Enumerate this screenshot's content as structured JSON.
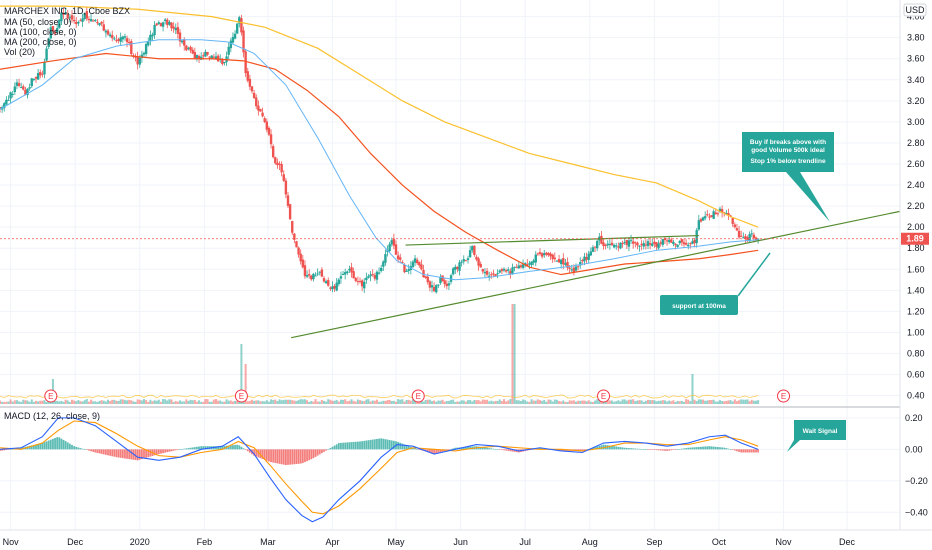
{
  "header": {
    "symbol_line": "MARCHEX INC, 1D, Cboe BZX",
    "currency": "USD"
  },
  "indicators": [
    "MA (50, close, 0)",
    "MA (100, close, 0)",
    "MA (200, close, 0)",
    "Vol (20)"
  ],
  "macd_label": "MACD (12, 26, close, 9)",
  "chart_data": {
    "type": "candlestick",
    "title": "MARCHEX INC, 1D, Cboe BZX",
    "price_axis": {
      "ticks": [
        "4.00",
        "3.80",
        "3.60",
        "3.40",
        "3.20",
        "3.00",
        "2.80",
        "2.60",
        "2.40",
        "2.20",
        "2.00",
        "1.80",
        "1.60",
        "1.40",
        "1.20",
        "1.00",
        "0.80",
        "0.60",
        "0.40"
      ],
      "range": [
        0.32,
        4.12
      ],
      "last_price": "1.89"
    },
    "macd_axis": {
      "ticks": [
        "0.20",
        "0.00",
        "−0.20",
        "−0.40"
      ],
      "range": [
        -0.5,
        0.25
      ]
    },
    "x_axis": {
      "labels": [
        "Nov",
        "Dec",
        "2020",
        "Feb",
        "Mar",
        "Apr",
        "May",
        "Jun",
        "Jul",
        "Aug",
        "Sep",
        "Oct",
        "Nov",
        "Dec"
      ],
      "label_days": [
        10,
        71,
        132,
        193,
        253,
        314,
        374,
        435,
        496,
        557,
        618,
        679,
        740,
        800
      ],
      "day_range": [
        0,
        850
      ]
    },
    "close_series": [
      [
        0,
        3.15
      ],
      [
        8,
        3.22
      ],
      [
        16,
        3.35
      ],
      [
        24,
        3.28
      ],
      [
        32,
        3.42
      ],
      [
        40,
        3.45
      ],
      [
        48,
        3.92
      ],
      [
        52,
        3.82
      ],
      [
        58,
        4.05
      ],
      [
        65,
        4.0
      ],
      [
        72,
        3.95
      ],
      [
        80,
        4.02
      ],
      [
        90,
        3.95
      ],
      [
        100,
        3.88
      ],
      [
        108,
        3.78
      ],
      [
        118,
        3.82
      ],
      [
        125,
        3.65
      ],
      [
        130,
        3.55
      ],
      [
        138,
        3.72
      ],
      [
        146,
        3.9
      ],
      [
        155,
        3.95
      ],
      [
        165,
        3.9
      ],
      [
        172,
        3.75
      ],
      [
        180,
        3.65
      ],
      [
        188,
        3.6
      ],
      [
        196,
        3.65
      ],
      [
        204,
        3.6
      ],
      [
        212,
        3.55
      ],
      [
        218,
        3.75
      ],
      [
        222,
        3.85
      ],
      [
        226,
        4.02
      ],
      [
        232,
        3.45
      ],
      [
        236,
        3.35
      ],
      [
        242,
        3.15
      ],
      [
        248,
        3.05
      ],
      [
        254,
        2.85
      ],
      [
        260,
        2.6
      ],
      [
        266,
        2.55
      ],
      [
        272,
        2.2
      ],
      [
        276,
        1.95
      ],
      [
        282,
        1.75
      ],
      [
        288,
        1.55
      ],
      [
        294,
        1.5
      ],
      [
        300,
        1.58
      ],
      [
        306,
        1.5
      ],
      [
        312,
        1.42
      ],
      [
        318,
        1.45
      ],
      [
        324,
        1.55
      ],
      [
        330,
        1.58
      ],
      [
        336,
        1.5
      ],
      [
        342,
        1.45
      ],
      [
        348,
        1.55
      ],
      [
        354,
        1.52
      ],
      [
        360,
        1.62
      ],
      [
        366,
        1.78
      ],
      [
        370,
        1.85
      ],
      [
        376,
        1.7
      ],
      [
        382,
        1.6
      ],
      [
        388,
        1.62
      ],
      [
        392,
        1.72
      ],
      [
        398,
        1.58
      ],
      [
        404,
        1.48
      ],
      [
        410,
        1.4
      ],
      [
        416,
        1.5
      ],
      [
        422,
        1.45
      ],
      [
        428,
        1.58
      ],
      [
        434,
        1.65
      ],
      [
        440,
        1.7
      ],
      [
        446,
        1.8
      ],
      [
        452,
        1.62
      ],
      [
        458,
        1.58
      ],
      [
        464,
        1.52
      ],
      [
        470,
        1.55
      ],
      [
        476,
        1.6
      ],
      [
        482,
        1.58
      ],
      [
        488,
        1.62
      ],
      [
        494,
        1.62
      ],
      [
        500,
        1.65
      ],
      [
        506,
        1.72
      ],
      [
        512,
        1.72
      ],
      [
        518,
        1.75
      ],
      [
        524,
        1.68
      ],
      [
        530,
        1.7
      ],
      [
        536,
        1.62
      ],
      [
        542,
        1.6
      ],
      [
        548,
        1.65
      ],
      [
        554,
        1.72
      ],
      [
        560,
        1.78
      ],
      [
        566,
        1.88
      ],
      [
        572,
        1.83
      ],
      [
        578,
        1.85
      ],
      [
        584,
        1.82
      ],
      [
        590,
        1.84
      ],
      [
        596,
        1.86
      ],
      [
        602,
        1.83
      ],
      [
        608,
        1.84
      ],
      [
        614,
        1.85
      ],
      [
        620,
        1.84
      ],
      [
        626,
        1.86
      ],
      [
        632,
        1.85
      ],
      [
        638,
        1.84
      ],
      [
        644,
        1.86
      ],
      [
        650,
        1.82
      ],
      [
        656,
        1.85
      ],
      [
        660,
        2.05
      ],
      [
        666,
        2.1
      ],
      [
        672,
        2.12
      ],
      [
        678,
        2.14
      ],
      [
        684,
        2.16
      ],
      [
        690,
        2.1
      ],
      [
        694,
        1.98
      ],
      [
        698,
        1.9
      ],
      [
        704,
        1.88
      ],
      [
        710,
        1.92
      ],
      [
        716,
        1.89
      ]
    ],
    "ma50": [
      [
        0,
        3.12
      ],
      [
        40,
        3.35
      ],
      [
        70,
        3.6
      ],
      [
        110,
        3.72
      ],
      [
        150,
        3.78
      ],
      [
        190,
        3.78
      ],
      [
        215,
        3.76
      ],
      [
        240,
        3.65
      ],
      [
        270,
        3.35
      ],
      [
        300,
        2.85
      ],
      [
        330,
        2.3
      ],
      [
        355,
        1.9
      ],
      [
        375,
        1.68
      ],
      [
        400,
        1.55
      ],
      [
        430,
        1.5
      ],
      [
        460,
        1.52
      ],
      [
        500,
        1.58
      ],
      [
        540,
        1.63
      ],
      [
        580,
        1.7
      ],
      [
        620,
        1.78
      ],
      [
        660,
        1.82
      ],
      [
        690,
        1.86
      ],
      [
        716,
        1.88
      ]
    ],
    "ma100": [
      [
        0,
        3.5
      ],
      [
        50,
        3.58
      ],
      [
        100,
        3.65
      ],
      [
        150,
        3.6
      ],
      [
        200,
        3.6
      ],
      [
        230,
        3.58
      ],
      [
        260,
        3.5
      ],
      [
        290,
        3.3
      ],
      [
        320,
        3.05
      ],
      [
        350,
        2.7
      ],
      [
        380,
        2.4
      ],
      [
        410,
        2.15
      ],
      [
        440,
        1.95
      ],
      [
        470,
        1.78
      ],
      [
        500,
        1.62
      ],
      [
        530,
        1.55
      ],
      [
        560,
        1.6
      ],
      [
        590,
        1.65
      ],
      [
        620,
        1.67
      ],
      [
        660,
        1.7
      ],
      [
        690,
        1.74
      ],
      [
        716,
        1.78
      ]
    ],
    "ma200": [
      [
        0,
        4.1
      ],
      [
        60,
        4.1
      ],
      [
        130,
        4.07
      ],
      [
        200,
        4.0
      ],
      [
        250,
        3.9
      ],
      [
        300,
        3.7
      ],
      [
        340,
        3.45
      ],
      [
        380,
        3.2
      ],
      [
        420,
        3.0
      ],
      [
        460,
        2.85
      ],
      [
        500,
        2.7
      ],
      [
        540,
        2.6
      ],
      [
        580,
        2.5
      ],
      [
        620,
        2.42
      ],
      [
        660,
        2.25
      ],
      [
        690,
        2.1
      ],
      [
        716,
        2.0
      ]
    ],
    "trendlines": [
      {
        "name": "rising-support",
        "points": [
          [
            275,
            0.95
          ],
          [
            850,
            2.15
          ]
        ],
        "color": "#558b2f"
      },
      {
        "name": "resistance",
        "points": [
          [
            383,
            1.83
          ],
          [
            660,
            1.92
          ]
        ],
        "color": "#558b2f"
      }
    ],
    "volume_spikes": [
      [
        50,
        0.25
      ],
      [
        228,
        0.6
      ],
      [
        232,
        0.4
      ],
      [
        485,
        1.0
      ],
      [
        654,
        0.3
      ]
    ],
    "earnings_days": [
      48,
      228,
      395,
      570,
      740
    ],
    "macd": [
      [
        0,
        0.0
      ],
      [
        20,
        0.01
      ],
      [
        40,
        0.08
      ],
      [
        55,
        0.2
      ],
      [
        70,
        0.2
      ],
      [
        90,
        0.15
      ],
      [
        110,
        0.05
      ],
      [
        130,
        -0.05
      ],
      [
        150,
        -0.07
      ],
      [
        170,
        -0.05
      ],
      [
        190,
        0.0
      ],
      [
        210,
        0.02
      ],
      [
        225,
        0.08
      ],
      [
        240,
        -0.03
      ],
      [
        255,
        -0.18
      ],
      [
        270,
        -0.32
      ],
      [
        285,
        -0.42
      ],
      [
        295,
        -0.46
      ],
      [
        305,
        -0.43
      ],
      [
        320,
        -0.32
      ],
      [
        340,
        -0.2
      ],
      [
        360,
        -0.05
      ],
      [
        375,
        0.03
      ],
      [
        390,
        0.02
      ],
      [
        410,
        -0.03
      ],
      [
        430,
        0.0
      ],
      [
        450,
        0.03
      ],
      [
        470,
        0.02
      ],
      [
        490,
        -0.01
      ],
      [
        510,
        0.01
      ],
      [
        530,
        -0.01
      ],
      [
        550,
        -0.02
      ],
      [
        570,
        0.04
      ],
      [
        590,
        0.05
      ],
      [
        610,
        0.04
      ],
      [
        630,
        0.02
      ],
      [
        650,
        0.04
      ],
      [
        670,
        0.08
      ],
      [
        685,
        0.09
      ],
      [
        700,
        0.04
      ],
      [
        716,
        0.0
      ]
    ],
    "signal": [
      [
        0,
        0.01
      ],
      [
        20,
        0.0
      ],
      [
        40,
        0.04
      ],
      [
        55,
        0.12
      ],
      [
        70,
        0.18
      ],
      [
        90,
        0.17
      ],
      [
        110,
        0.1
      ],
      [
        130,
        0.02
      ],
      [
        150,
        -0.04
      ],
      [
        170,
        -0.05
      ],
      [
        190,
        -0.02
      ],
      [
        210,
        0.0
      ],
      [
        225,
        0.05
      ],
      [
        240,
        0.01
      ],
      [
        255,
        -0.1
      ],
      [
        270,
        -0.22
      ],
      [
        285,
        -0.33
      ],
      [
        295,
        -0.4
      ],
      [
        305,
        -0.41
      ],
      [
        320,
        -0.36
      ],
      [
        340,
        -0.25
      ],
      [
        360,
        -0.12
      ],
      [
        375,
        -0.02
      ],
      [
        390,
        0.01
      ],
      [
        410,
        0.0
      ],
      [
        430,
        -0.01
      ],
      [
        450,
        0.01
      ],
      [
        470,
        0.02
      ],
      [
        490,
        0.01
      ],
      [
        510,
        0.0
      ],
      [
        530,
        0.0
      ],
      [
        550,
        -0.01
      ],
      [
        570,
        0.01
      ],
      [
        590,
        0.04
      ],
      [
        610,
        0.04
      ],
      [
        630,
        0.03
      ],
      [
        650,
        0.03
      ],
      [
        670,
        0.06
      ],
      [
        685,
        0.08
      ],
      [
        700,
        0.06
      ],
      [
        716,
        0.02
      ]
    ]
  },
  "annotations": {
    "buy_note": [
      "Buy if breaks above with",
      "good Volume 500k ideal",
      "",
      "Stop 1% below trendline"
    ],
    "support_note": "support at 100ma",
    "wait_note": "Wait Signal",
    "earnings_label": "E"
  },
  "colors": {
    "up": "#26a69a",
    "down": "#ef5350",
    "ma50": "#64b5f6",
    "ma100": "#f4511e",
    "ma200": "#fbc02d",
    "trendline": "#558b2f",
    "note_bg": "#26a69a",
    "price_badge": "#ef5350",
    "macd_line": "#2962ff",
    "signal_line": "#ff9800"
  }
}
